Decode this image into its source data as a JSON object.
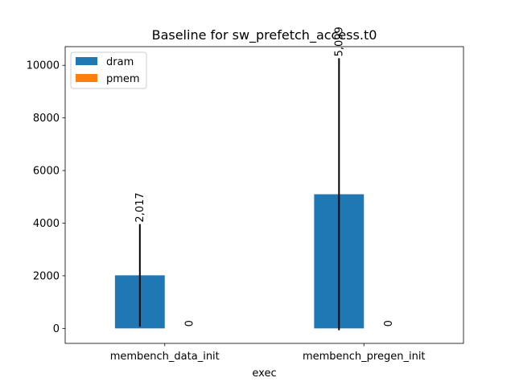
{
  "chart_data": {
    "type": "bar",
    "title": "Baseline for sw_prefetch_access.t0",
    "xlabel": "exec",
    "ylabel": "",
    "categories": [
      "membench_data_init",
      "membench_pregen_init"
    ],
    "series": [
      {
        "name": "dram",
        "color": "#1f77b4",
        "values": [
          2017,
          5099
        ],
        "value_labels": [
          "2,017",
          "5,099"
        ],
        "error": [
          1950,
          5170
        ]
      },
      {
        "name": "pmem",
        "color": "#ff7f0e",
        "values": [
          0,
          0
        ],
        "value_labels": [
          "0",
          "0"
        ],
        "error": [
          0,
          0
        ]
      }
    ],
    "ylim": [
      -570,
      10710
    ],
    "yticks": [
      0,
      2000,
      4000,
      6000,
      8000,
      10000
    ],
    "ytick_labels": [
      "0",
      "2000",
      "4000",
      "6000",
      "8000",
      "10000"
    ],
    "grid": false,
    "legend_position": "top-left"
  }
}
